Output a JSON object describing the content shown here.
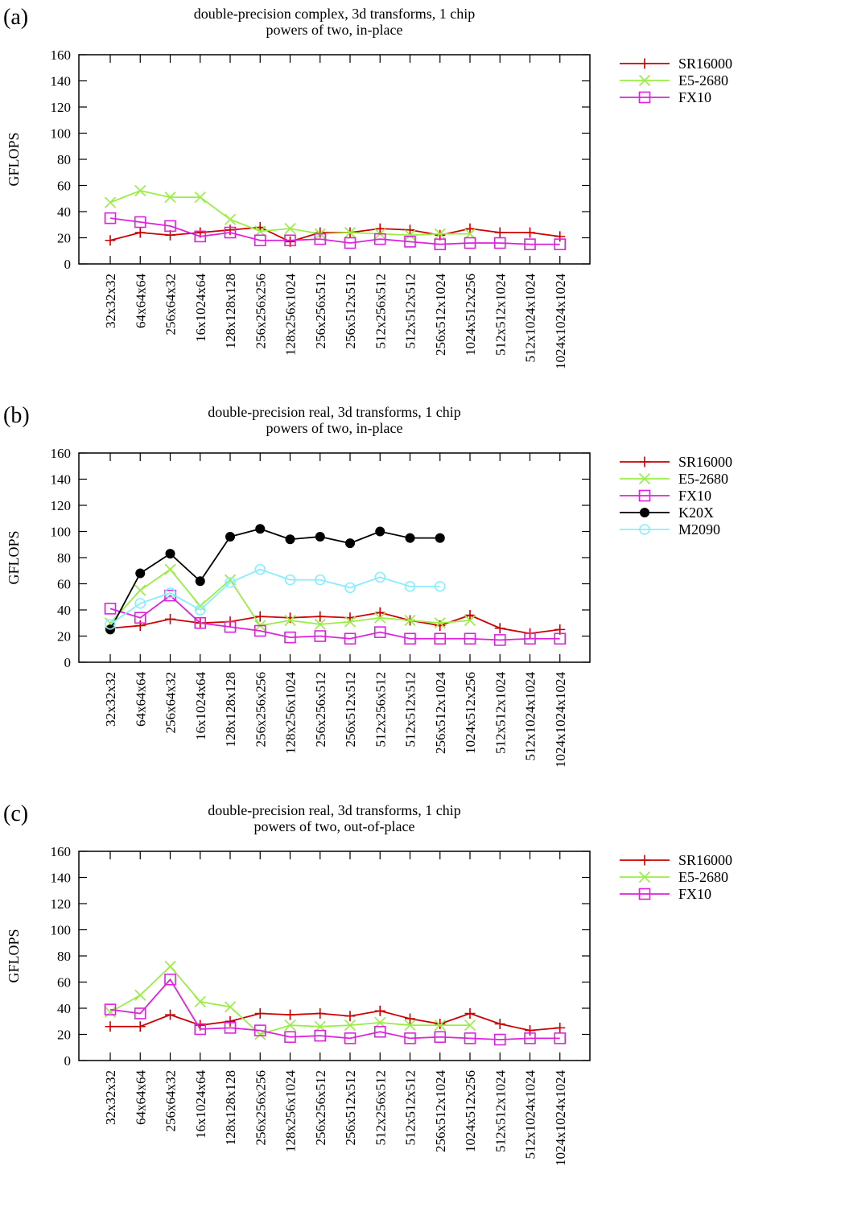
{
  "chart_data": [
    {
      "panel_label": "(a)",
      "type": "line",
      "title_lines": [
        "double-precision complex, 3d transforms, 1 chip",
        "powers of two, in-place"
      ],
      "xlabel": "",
      "ylabel": "GFLOPS",
      "ylim": [
        0,
        160
      ],
      "yticks": [
        0,
        20,
        40,
        60,
        80,
        100,
        120,
        140,
        160
      ],
      "grid": false,
      "legend": "right-outside",
      "categories": [
        "32x32x32",
        "64x64x64",
        "256x64x32",
        "16x1024x64",
        "128x128x128",
        "256x256x256",
        "128x256x1024",
        "256x256x512",
        "256x512x512",
        "512x256x512",
        "512x512x512",
        "256x512x1024",
        "1024x512x256",
        "512x512x1024",
        "512x1024x1024",
        "1024x1024x1024"
      ],
      "series": [
        {
          "name": "SR16000",
          "color": "#cc0000",
          "marker": "plus",
          "values": [
            18,
            24,
            22,
            24,
            26,
            28,
            17,
            24,
            24,
            27,
            26,
            22,
            27,
            24,
            24,
            21
          ]
        },
        {
          "name": "E5-2680",
          "color": "#99ee44",
          "marker": "cross",
          "values": [
            47,
            56,
            51,
            51,
            34,
            25,
            27,
            23,
            24,
            23,
            22,
            23,
            23,
            null,
            null,
            null
          ]
        },
        {
          "name": "FX10",
          "color": "#dd22dd",
          "marker": "square",
          "values": [
            35,
            32,
            29,
            21,
            24,
            18,
            18,
            19,
            16,
            19,
            17,
            15,
            16,
            16,
            15,
            15
          ]
        }
      ]
    },
    {
      "panel_label": "(b)",
      "type": "line",
      "title_lines": [
        "double-precision real, 3d transforms, 1 chip",
        "powers of two, in-place"
      ],
      "xlabel": "",
      "ylabel": "GFLOPS",
      "ylim": [
        0,
        160
      ],
      "yticks": [
        0,
        20,
        40,
        60,
        80,
        100,
        120,
        140,
        160
      ],
      "grid": false,
      "legend": "right-outside",
      "categories": [
        "32x32x32",
        "64x64x64",
        "256x64x32",
        "16x1024x64",
        "128x128x128",
        "256x256x256",
        "128x256x1024",
        "256x256x512",
        "256x512x512",
        "512x256x512",
        "512x512x512",
        "256x512x1024",
        "1024x512x256",
        "512x512x1024",
        "512x1024x1024",
        "1024x1024x1024"
      ],
      "series": [
        {
          "name": "SR16000",
          "color": "#cc0000",
          "marker": "plus",
          "values": [
            26,
            28,
            33,
            30,
            31,
            35,
            34,
            35,
            34,
            38,
            32,
            28,
            36,
            26,
            22,
            25
          ]
        },
        {
          "name": "E5-2680",
          "color": "#99ee44",
          "marker": "cross",
          "values": [
            30,
            55,
            71,
            43,
            63,
            28,
            32,
            29,
            31,
            34,
            32,
            30,
            32,
            null,
            null,
            null
          ]
        },
        {
          "name": "FX10",
          "color": "#dd22dd",
          "marker": "square",
          "values": [
            41,
            34,
            51,
            30,
            27,
            24,
            19,
            20,
            18,
            23,
            18,
            18,
            18,
            17,
            18,
            18
          ]
        },
        {
          "name": "K20X",
          "color": "#000000",
          "marker": "filled-circle",
          "values": [
            25,
            68,
            83,
            62,
            96,
            102,
            94,
            96,
            91,
            100,
            95,
            95,
            null,
            null,
            null,
            null
          ]
        },
        {
          "name": "M2090",
          "color": "#88eeff",
          "marker": "open-circle",
          "values": [
            29,
            45,
            53,
            40,
            61,
            71,
            63,
            63,
            57,
            65,
            58,
            58,
            null,
            null,
            null,
            null
          ]
        }
      ]
    },
    {
      "panel_label": "(c)",
      "type": "line",
      "title_lines": [
        "double-precision real, 3d transforms, 1 chip",
        "powers of two, out-of-place"
      ],
      "xlabel": "",
      "ylabel": "GFLOPS",
      "ylim": [
        0,
        160
      ],
      "yticks": [
        0,
        20,
        40,
        60,
        80,
        100,
        120,
        140,
        160
      ],
      "grid": false,
      "legend": "right-outside",
      "categories": [
        "32x32x32",
        "64x64x64",
        "256x64x32",
        "16x1024x64",
        "128x128x128",
        "256x256x256",
        "128x256x1024",
        "256x256x512",
        "256x512x512",
        "512x256x512",
        "512x512x512",
        "256x512x1024",
        "1024x512x256",
        "512x512x1024",
        "512x1024x1024",
        "1024x1024x1024"
      ],
      "series": [
        {
          "name": "SR16000",
          "color": "#cc0000",
          "marker": "plus",
          "values": [
            26,
            26,
            35,
            27,
            30,
            36,
            35,
            36,
            34,
            38,
            32,
            28,
            36,
            28,
            23,
            25
          ]
        },
        {
          "name": "E5-2680",
          "color": "#99ee44",
          "marker": "cross",
          "values": [
            37,
            50,
            72,
            45,
            41,
            20,
            27,
            26,
            27,
            29,
            27,
            27,
            27,
            null,
            null,
            null
          ]
        },
        {
          "name": "FX10",
          "color": "#dd22dd",
          "marker": "square",
          "values": [
            39,
            36,
            62,
            24,
            25,
            23,
            18,
            19,
            17,
            22,
            17,
            18,
            17,
            16,
            17,
            17
          ]
        }
      ]
    }
  ]
}
